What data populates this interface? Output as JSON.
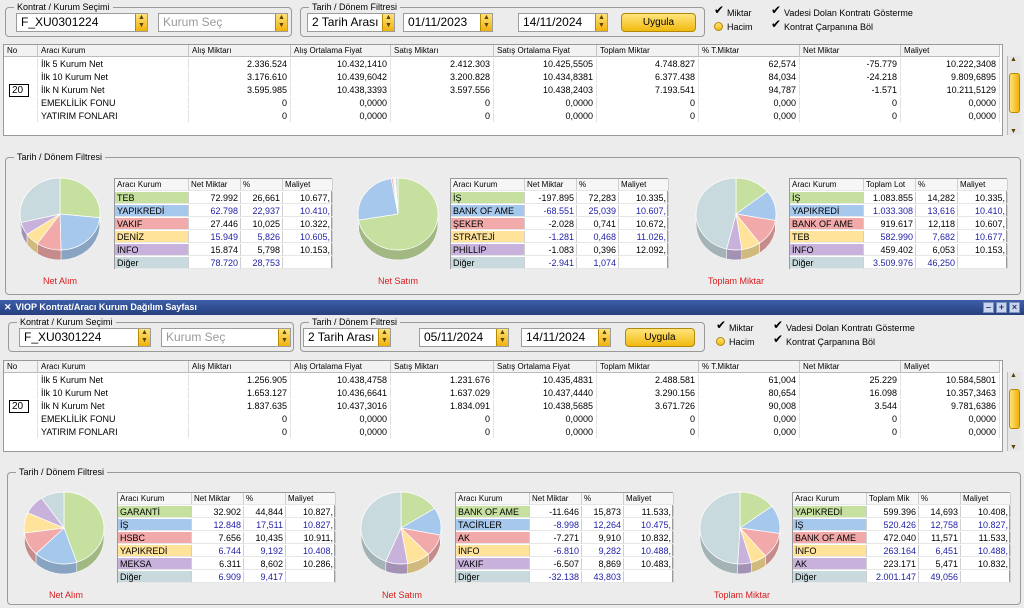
{
  "window_title": "VIOP Kontrat/Aracı Kurum Dağılım Sayfası",
  "legend_kontrat": "Kontrat / Kurum Seçimi",
  "legend_tarih": "Tarih / Dönem Filtresi",
  "legend_tarih2": "Tarih / Dönem Filtresi",
  "opts": {
    "miktar": "Miktar",
    "hacim": "Hacim",
    "vadesi": "Vadesi Dolan Kontratı Gösterme",
    "carpan": "Kontrat Çarpanına Böl"
  },
  "grid_headers": [
    "No",
    "Aracı Kurum",
    "Alış Miktarı",
    "Alış Ortalama Fiyat",
    "Satış Miktarı",
    "Satış Ortalama Fiyat",
    "Toplam Miktar",
    "% T.Miktar",
    "Net Miktar",
    "Maliyet"
  ],
  "mini_headers": {
    "alim": [
      "Aracı Kurum",
      "Net Miktar",
      "%",
      "Maliyet"
    ],
    "satim": [
      "Aracı Kurum",
      "Net Miktar",
      "%",
      "Maliyet"
    ],
    "toplam1": [
      "Aracı Kurum",
      "Toplam Lot",
      "%",
      "Maliyet"
    ],
    "toplam2": [
      "Aracı Kurum",
      "Toplam Mik",
      "%",
      "Maliyet"
    ]
  },
  "pie_labels": {
    "alim": "Net Alım",
    "satim": "Net Satım",
    "toplam": "Toplam Miktar"
  },
  "panel1": {
    "kontrat": "F_XU0301224",
    "kurum_placeholder": "Kurum Seç",
    "period": "2 Tarih Arası",
    "date_from": "01/11/2023",
    "date_to": "14/11/2024",
    "apply": "Uygula",
    "n_value": "20",
    "rows": [
      [
        "",
        "İlk 5 Kurum Net",
        "2.336.524",
        "10.432,1410",
        "2.412.303",
        "10.425,5505",
        "4.748.827",
        "62,574",
        "-75.779",
        "10.222,3408"
      ],
      [
        "",
        "İlk 10 Kurum Net",
        "3.176.610",
        "10.439,6042",
        "3.200.828",
        "10.434,8381",
        "6.377.438",
        "84,034",
        "-24.218",
        "9.809,6895"
      ],
      [
        "",
        "İlk N Kurum Net",
        "3.595.985",
        "10.438,3393",
        "3.597.556",
        "10.438,2403",
        "7.193.541",
        "94,787",
        "-1.571",
        "10.211,5129"
      ],
      [
        "",
        "EMEKLİLİK FONU",
        "0",
        "0,0000",
        "0",
        "0,0000",
        "0",
        "0,000",
        "0",
        "0,0000"
      ],
      [
        "",
        "YATIRIM FONLARI",
        "0",
        "0,0000",
        "0",
        "0,0000",
        "0",
        "0,000",
        "0",
        "0,0000"
      ]
    ],
    "alim": [
      {
        "name": "TEB",
        "net": "72.992",
        "pct": "26,661",
        "cost": "10.677,",
        "color": "#c6e0a0",
        "v": 26.661
      },
      {
        "name": "YAPIKREDİ",
        "net": "62.798",
        "pct": "22,937",
        "cost": "10.410,",
        "color": "#a6c8ec",
        "v": 22.937
      },
      {
        "name": "VAKIF",
        "net": "27.446",
        "pct": "10,025",
        "cost": "10.322,",
        "color": "#f2a9a9",
        "v": 10.025
      },
      {
        "name": "DENİZ",
        "net": "15.949",
        "pct": "5,826",
        "cost": "10.605,",
        "color": "#ffe39a",
        "v": 5.826
      },
      {
        "name": "İNFO",
        "net": "15.874",
        "pct": "5,798",
        "cost": "10.153,",
        "color": "#c8b2dc",
        "v": 5.798
      },
      {
        "name": "Diğer",
        "net": "78.720",
        "pct": "28,753",
        "cost": "",
        "color": "#c8dadd",
        "v": 28.753
      }
    ],
    "satim": [
      {
        "name": "İŞ",
        "net": "-197.895",
        "pct": "72,283",
        "cost": "10.335,",
        "color": "#c6e0a0",
        "v": 72.283
      },
      {
        "name": "BANK OF AME",
        "net": "-68.551",
        "pct": "25,039",
        "cost": "10.607,",
        "color": "#a6c8ec",
        "v": 25.039
      },
      {
        "name": "ŞEKER",
        "net": "-2.028",
        "pct": "0,741",
        "cost": "10.672,",
        "color": "#f2a9a9",
        "v": 0.741
      },
      {
        "name": "STRATEJİ",
        "net": "-1.281",
        "pct": "0,468",
        "cost": "11.026,",
        "color": "#ffe39a",
        "v": 0.468
      },
      {
        "name": "PHİLLİP",
        "net": "-1.083",
        "pct": "0,396",
        "cost": "12.092,",
        "color": "#c8b2dc",
        "v": 0.396
      },
      {
        "name": "Diğer",
        "net": "-2.941",
        "pct": "1,074",
        "cost": "",
        "color": "#c8dadd",
        "v": 1.074
      }
    ],
    "toplam": [
      {
        "name": "İŞ",
        "net": "1.083.855",
        "pct": "14,282",
        "cost": "10.335,",
        "color": "#c6e0a0",
        "v": 14.282
      },
      {
        "name": "YAPIKREDİ",
        "net": "1.033.308",
        "pct": "13,616",
        "cost": "10.410,",
        "color": "#a6c8ec",
        "v": 13.616
      },
      {
        "name": "BANK OF AME",
        "net": "919.617",
        "pct": "12,118",
        "cost": "10.607,",
        "color": "#f2a9a9",
        "v": 12.118
      },
      {
        "name": "TEB",
        "net": "582.990",
        "pct": "7,682",
        "cost": "10.677,",
        "color": "#ffe39a",
        "v": 7.682
      },
      {
        "name": "İNFO",
        "net": "459.402",
        "pct": "6,053",
        "cost": "10.153,",
        "color": "#c8b2dc",
        "v": 6.053
      },
      {
        "name": "Diğer",
        "net": "3.509.976",
        "pct": "46,250",
        "cost": "",
        "color": "#c8dadd",
        "v": 46.25
      }
    ]
  },
  "panel2": {
    "kontrat": "F_XU0301224",
    "kurum_placeholder": "Kurum Seç",
    "period": "2 Tarih Arası",
    "date_from": "05/11/2024",
    "date_to": "14/11/2024",
    "apply": "Uygula",
    "n_value": "20",
    "rows": [
      [
        "",
        "İlk 5 Kurum Net",
        "1.256.905",
        "10.438,4758",
        "1.231.676",
        "10.435,4831",
        "2.488.581",
        "61,004",
        "25.229",
        "10.584,5801"
      ],
      [
        "",
        "İlk 10 Kurum Net",
        "1.653.127",
        "10.436,6641",
        "1.637.029",
        "10.437,4440",
        "3.290.156",
        "80,654",
        "16.098",
        "10.357,3463"
      ],
      [
        "",
        "İlk N Kurum Net",
        "1.837.635",
        "10.437,3016",
        "1.834.091",
        "10.438,5685",
        "3.671.726",
        "90,008",
        "3.544",
        "9.781,6386"
      ],
      [
        "",
        "EMEKLİLİK FONU",
        "0",
        "0,0000",
        "0",
        "0,0000",
        "0",
        "0,000",
        "0",
        "0,0000"
      ],
      [
        "",
        "YATIRIM FONLARI",
        "0",
        "0,0000",
        "0",
        "0,0000",
        "0",
        "0,000",
        "0",
        "0,0000"
      ]
    ],
    "alim": [
      {
        "name": "GARANTİ",
        "net": "32.902",
        "pct": "44,844",
        "cost": "10.827,",
        "color": "#c6e0a0",
        "v": 44.844
      },
      {
        "name": "İŞ",
        "net": "12.848",
        "pct": "17,511",
        "cost": "10.827,",
        "color": "#a6c8ec",
        "v": 17.511
      },
      {
        "name": "HSBC",
        "net": "7.656",
        "pct": "10,435",
        "cost": "10.911,",
        "color": "#f2a9a9",
        "v": 10.435
      },
      {
        "name": "YAPIKREDİ",
        "net": "6.744",
        "pct": "9,192",
        "cost": "10.408,",
        "color": "#ffe39a",
        "v": 9.192
      },
      {
        "name": "MEKSA",
        "net": "6.311",
        "pct": "8,602",
        "cost": "10.286,",
        "color": "#c8b2dc",
        "v": 8.602
      },
      {
        "name": "Diğer",
        "net": "6.909",
        "pct": "9,417",
        "cost": "",
        "color": "#c8dadd",
        "v": 9.417
      }
    ],
    "satim": [
      {
        "name": "BANK OF AME",
        "net": "-11.646",
        "pct": "15,873",
        "cost": "11.533,",
        "color": "#c6e0a0",
        "v": 15.873
      },
      {
        "name": "TACİRLER",
        "net": "-8.998",
        "pct": "12,264",
        "cost": "10.475,",
        "color": "#a6c8ec",
        "v": 12.264
      },
      {
        "name": "AK",
        "net": "-7.271",
        "pct": "9,910",
        "cost": "10.832,",
        "color": "#f2a9a9",
        "v": 9.91
      },
      {
        "name": "İNFO",
        "net": "-6.810",
        "pct": "9,282",
        "cost": "10.488,",
        "color": "#ffe39a",
        "v": 9.282
      },
      {
        "name": "VAKIF",
        "net": "-6.507",
        "pct": "8,869",
        "cost": "10.483,",
        "color": "#c8b2dc",
        "v": 8.869
      },
      {
        "name": "Diğer",
        "net": "-32.138",
        "pct": "43,803",
        "cost": "",
        "color": "#c8dadd",
        "v": 43.803
      }
    ],
    "toplam": [
      {
        "name": "YAPIKREDİ",
        "net": "599.396",
        "pct": "14,693",
        "cost": "10.408,",
        "color": "#c6e0a0",
        "v": 14.693
      },
      {
        "name": "İŞ",
        "net": "520.426",
        "pct": "12,758",
        "cost": "10.827,",
        "color": "#a6c8ec",
        "v": 12.758
      },
      {
        "name": "BANK OF AME",
        "net": "472.040",
        "pct": "11,571",
        "cost": "11.533,",
        "color": "#f2a9a9",
        "v": 11.571
      },
      {
        "name": "İNFO",
        "net": "263.164",
        "pct": "6,451",
        "cost": "10.488,",
        "color": "#ffe39a",
        "v": 6.451
      },
      {
        "name": "AK",
        "net": "223.171",
        "pct": "5,471",
        "cost": "10.832,",
        "color": "#c8b2dc",
        "v": 5.471
      },
      {
        "name": "Diğer",
        "net": "2.001.147",
        "pct": "49,056",
        "cost": "",
        "color": "#c8dadd",
        "v": 49.056
      }
    ]
  }
}
